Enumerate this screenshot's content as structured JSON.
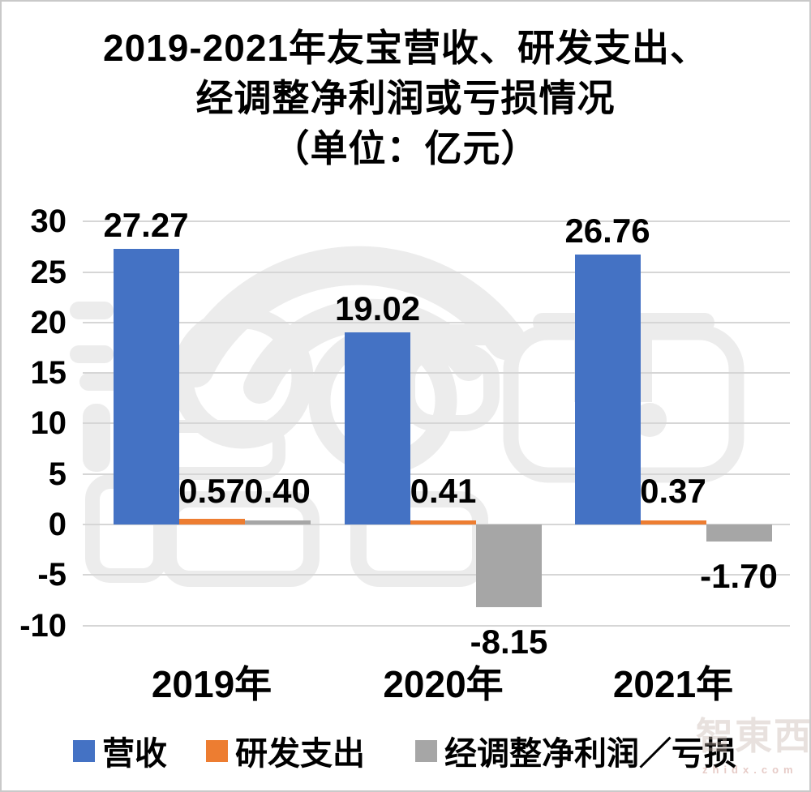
{
  "chart_data": {
    "type": "bar",
    "title_lines": [
      "2019-2021年友宝营收、研发支出、",
      "经调整净利润或亏损情况",
      "（单位：亿元）"
    ],
    "categories": [
      "2019年",
      "2020年",
      "2021年"
    ],
    "series": [
      {
        "key": "revenue",
        "name": "营收",
        "color": "#4472C4",
        "values": [
          27.27,
          19.02,
          26.76
        ],
        "value_labels": [
          "27.27",
          "19.02",
          "26.76"
        ]
      },
      {
        "key": "rd-expense",
        "name": "研发支出",
        "color": "#ED7D31",
        "values": [
          0.57,
          0.41,
          0.37
        ],
        "value_labels": [
          "0.57",
          "0.41",
          "0.37"
        ]
      },
      {
        "key": "adjusted-net-profit-loss",
        "name": "经调整净利润／亏损",
        "color": "#A6A6A6",
        "values": [
          0.4,
          -8.15,
          -1.7
        ],
        "value_labels": [
          "0.40",
          "-8.15",
          "-1.70"
        ]
      }
    ],
    "y_axis": {
      "min": -10,
      "max": 30,
      "ticks": [
        30,
        25,
        20,
        15,
        10,
        5,
        0,
        -5,
        -10
      ],
      "tick_labels": [
        "30",
        "25",
        "20",
        "15",
        "10",
        "5",
        "0",
        "-5",
        "-10"
      ]
    },
    "grid": true,
    "legend_position": "bottom",
    "gridline_color": "#D6D6D6",
    "text_color": "#000000"
  },
  "watermark": {
    "logo_text": "智東西",
    "site_text": "zhidx.com"
  }
}
